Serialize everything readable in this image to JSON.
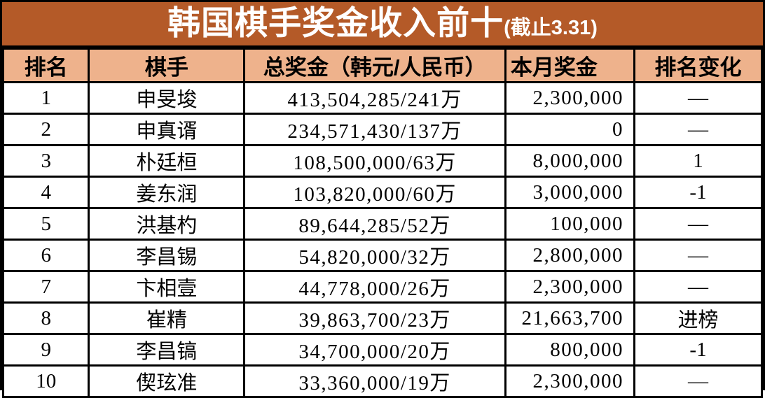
{
  "title": {
    "main": "韩国棋手奖金收入前十",
    "suffix": "(截止3.31)"
  },
  "colors": {
    "title_bg": "#b45a28",
    "title_text": "#ffffff",
    "header_bg": "#eeb28c",
    "border": "#000000",
    "row_bg": "#ffffff",
    "text": "#000000"
  },
  "chart_data": {
    "type": "table",
    "title": "韩国棋手奖金收入前十(截止3.31)",
    "columns": [
      {
        "key": "rank",
        "label": "排名"
      },
      {
        "key": "player",
        "label": "棋手"
      },
      {
        "key": "total",
        "label": "总奖金（韩元/人民币）"
      },
      {
        "key": "month",
        "label": "本月奖金"
      },
      {
        "key": "change",
        "label": "排名变化"
      }
    ],
    "rows": [
      {
        "rank": "1",
        "player": "申旻埈",
        "total": "413,504,285/241万",
        "month": "2,300,000",
        "change": "—"
      },
      {
        "rank": "2",
        "player": "申真谞",
        "total": "234,571,430/137万",
        "month": "0",
        "change": "—"
      },
      {
        "rank": "3",
        "player": "朴廷桓",
        "total": "108,500,000/63万",
        "month": "8,000,000",
        "change": "1"
      },
      {
        "rank": "4",
        "player": "姜东润",
        "total": "103,820,000/60万",
        "month": "3,000,000",
        "change": "-1"
      },
      {
        "rank": "5",
        "player": "洪基杓",
        "total": "89,644,285/52万",
        "month": "100,000",
        "change": "—"
      },
      {
        "rank": "6",
        "player": "李昌锡",
        "total": "54,820,000/32万",
        "month": "2,800,000",
        "change": "—"
      },
      {
        "rank": "7",
        "player": "卞相壹",
        "total": "44,778,000/26万",
        "month": "2,300,000",
        "change": "—"
      },
      {
        "rank": "8",
        "player": "崔精",
        "total": "39,863,700/23万",
        "month": "21,663,700",
        "change": "进榜"
      },
      {
        "rank": "9",
        "player": "李昌镐",
        "total": "34,700,000/20万",
        "month": "800,000",
        "change": "-1"
      },
      {
        "rank": "10",
        "player": "偰玹准",
        "total": "33,360,000/19万",
        "month": "2,300,000",
        "change": "—"
      }
    ]
  }
}
